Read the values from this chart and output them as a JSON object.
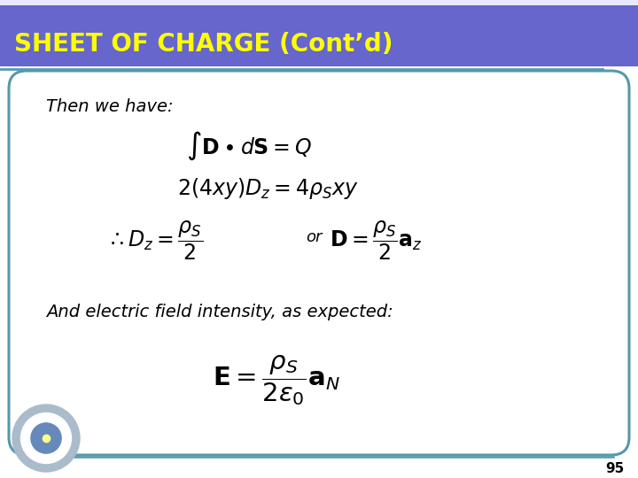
{
  "title": "SHEET OF CHARGE (Cont’d)",
  "title_bg_color": "#6666cc",
  "title_text_color": "#ffff00",
  "title_fontsize": 20,
  "slide_bg_color": "#ffffff",
  "border_color": "#5599aa",
  "text_then": "Then we have:",
  "text_and": "And electric field intensity, as expected:",
  "eq1": "$\\int\\mathbf{D}\\bullet d\\mathbf{S} = Q$",
  "eq2": "$2(4xy)D_z = 4\\rho_S xy$",
  "eq3_left": "$\\therefore D_z = \\dfrac{\\rho_S}{2}$",
  "eq3_or": "or",
  "eq3_right": "$\\mathbf{D} = \\dfrac{\\rho_S}{2}\\mathbf{a}_z$",
  "eq4": "$\\mathbf{E} = \\dfrac{\\rho_S}{2\\varepsilon_0}\\mathbf{a}_N$",
  "page_num": "95",
  "eq_fontsize": 17,
  "text_fontsize": 14,
  "or_fontsize": 13,
  "logo_color": "#4466aa"
}
